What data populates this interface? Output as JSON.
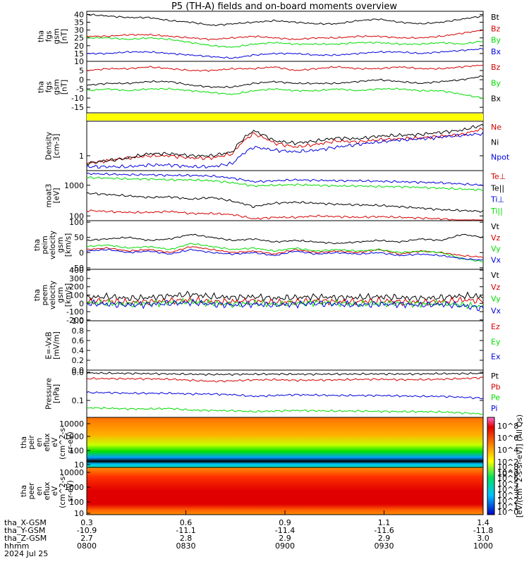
{
  "title": "P5 (TH-A) fields and on-board moments overview",
  "colors": {
    "black": "#000000",
    "red": "#d40000",
    "green": "#00dd00",
    "blue": "#0000dd",
    "yellow": "#ffff00"
  },
  "chart_data": {
    "type": "line",
    "panels": [
      {
        "ylabel": [
          "tha",
          "fgs",
          "gsm",
          "[nT]"
        ],
        "ylim": [
          10,
          42
        ],
        "ticks": [
          "40",
          "35",
          "30",
          "25",
          "20",
          "15",
          "10"
        ],
        "series": [
          {
            "name": "Bt",
            "color": "black",
            "values": [
              40,
              39,
              38,
              38,
              36,
              35,
              33,
              34,
              35,
              36,
              35,
              34,
              34,
              36,
              37,
              35,
              34,
              35,
              37,
              39
            ]
          },
          {
            "name": "Bz",
            "color": "red",
            "values": [
              26,
              26,
              27,
              27,
              26,
              25,
              24,
              25,
              26,
              25,
              24,
              25,
              25,
              26,
              26,
              25,
              25,
              26,
              28,
              30
            ]
          },
          {
            "name": "By",
            "color": "green",
            "values": [
              25,
              25,
              24,
              25,
              24,
              22,
              20,
              19,
              21,
              22,
              21,
              21,
              21,
              22,
              22,
              21,
              21,
              22,
              21,
              23
            ]
          },
          {
            "name": "Bx",
            "color": "blue",
            "values": [
              15,
              15,
              16,
              16,
              15,
              14,
              13,
              12,
              14,
              15,
              15,
              14,
              14,
              15,
              16,
              16,
              15,
              16,
              17,
              18
            ]
          }
        ]
      },
      {
        "ylabel": [
          "tha",
          "fgs",
          "gsm",
          "[nT]"
        ],
        "ylim": [
          -18,
          10
        ],
        "ticks": [
          "5",
          "0",
          "-5",
          "-10",
          "-15"
        ],
        "series": [
          {
            "name": "Bz",
            "color": "red",
            "values": [
              5,
              6,
              6,
              7,
              6,
              5,
              5,
              6,
              6,
              7,
              5,
              6,
              7,
              6,
              6,
              7,
              6,
              6,
              7,
              8
            ]
          },
          {
            "name": "By",
            "color": "green",
            "values": [
              -6,
              -5,
              -6,
              -5,
              -5,
              -6,
              -7,
              -8,
              -6,
              -5,
              -6,
              -6,
              -5,
              -6,
              -5,
              -5,
              -6,
              -6,
              -8,
              -10
            ]
          },
          {
            "name": "Bx",
            "color": "black",
            "values": [
              -3,
              -2,
              -2,
              -1,
              -1,
              -3,
              -4,
              -4,
              -2,
              -1,
              -2,
              -2,
              -2,
              -1,
              0,
              -1,
              -2,
              -1,
              0,
              2
            ]
          }
        ]
      },
      {
        "ylabel": [],
        "ylim": [
          0,
          1
        ],
        "ticks": [],
        "series": []
      },
      {
        "ylabel": [
          "Density",
          "[cm-3]"
        ],
        "log": true,
        "ylim": [
          0.5,
          5
        ],
        "ticks": [
          "1"
        ],
        "series": [
          {
            "name": "Ne",
            "color": "red",
            "values": [
              0.7,
              0.8,
              0.9,
              1.0,
              1.0,
              0.9,
              0.9,
              1.1,
              2.8,
              1.8,
              1.5,
              1.7,
              2.0,
              1.9,
              2.1,
              2.2,
              2.3,
              2.5,
              2.7,
              3.5
            ]
          },
          {
            "name": "Ni",
            "color": "black",
            "values": [
              0.7,
              0.8,
              0.9,
              1.1,
              1.1,
              1.0,
              1.0,
              1.2,
              3.2,
              2.0,
              1.8,
              2.0,
              2.3,
              2.2,
              2.5,
              2.6,
              2.7,
              3.0,
              3.3,
              4.2
            ]
          },
          {
            "name": "Npot",
            "color": "blue",
            "values": [
              0.6,
              0.6,
              0.6,
              0.65,
              0.65,
              0.6,
              0.6,
              0.7,
              1.5,
              1.3,
              1.2,
              1.3,
              1.5,
              1.7,
              1.9,
              2.1,
              2.2,
              2.4,
              2.6,
              2.8
            ]
          }
        ]
      },
      {
        "ylabel": [
          "moat3",
          "[eV]"
        ],
        "log": true,
        "ylim": [
          70,
          3000
        ],
        "ticks": [
          "1000",
          "100"
        ],
        "series": [
          {
            "name": "Te⊥",
            "color": "red",
            "values": [
              150,
              140,
              130,
              130,
              140,
              120,
              120,
              110,
              80,
              90,
              90,
              100,
              95,
              90,
              95,
              90,
              85,
              80,
              70,
              70
            ]
          },
          {
            "name": "Te||",
            "color": "black",
            "values": [
              550,
              500,
              450,
              400,
              420,
              350,
              400,
              300,
              200,
              260,
              280,
              260,
              240,
              230,
              220,
              200,
              180,
              160,
              150,
              140
            ]
          },
          {
            "name": "Ti⊥",
            "color": "blue",
            "values": [
              2400,
              2300,
              2200,
              2200,
              2100,
              2100,
              2000,
              1700,
              1300,
              1400,
              1500,
              1450,
              1400,
              1400,
              1350,
              1300,
              1250,
              1200,
              1100,
              1000
            ]
          },
          {
            "name": "Ti||",
            "color": "green",
            "values": [
              1800,
              1700,
              1600,
              1600,
              1500,
              1500,
              1400,
              1200,
              950,
              1000,
              1050,
              1000,
              950,
              950,
              900,
              900,
              850,
              800,
              750,
              700
            ]
          }
        ]
      },
      {
        "ylabel": [
          "tha",
          "peim",
          "velocity",
          "gsm",
          "[km/s]"
        ],
        "ylim": [
          -55,
          105
        ],
        "ticks": [
          "100",
          "50",
          "0",
          "-50"
        ],
        "series": [
          {
            "name": "Vt",
            "color": "black",
            "values": [
              40,
              45,
              50,
              40,
              45,
              60,
              50,
              40,
              45,
              35,
              40,
              35,
              30,
              35,
              40,
              35,
              45,
              40,
              60,
              50
            ]
          },
          {
            "name": "Vz",
            "color": "red",
            "values": [
              10,
              15,
              5,
              10,
              0,
              20,
              10,
              0,
              5,
              -5,
              10,
              0,
              5,
              0,
              10,
              -5,
              5,
              0,
              -10,
              -15
            ]
          },
          {
            "name": "Vy",
            "color": "green",
            "values": [
              20,
              25,
              15,
              20,
              10,
              30,
              20,
              10,
              15,
              5,
              15,
              5,
              10,
              5,
              10,
              0,
              5,
              0,
              -20,
              -30
            ]
          },
          {
            "name": "Vx",
            "color": "blue",
            "values": [
              5,
              10,
              0,
              5,
              -5,
              10,
              0,
              -5,
              0,
              -10,
              5,
              -5,
              0,
              -5,
              0,
              -10,
              -5,
              -10,
              -20,
              -25
            ]
          }
        ]
      },
      {
        "ylabel": [
          "tha",
          "peem",
          "velocity",
          "gsm",
          "[km/s]"
        ],
        "ylim": [
          -210,
          410
        ],
        "ticks": [
          "400",
          "300",
          "200",
          "100",
          "0",
          "-100",
          "-200"
        ],
        "series": [
          {
            "name": "Vt",
            "color": "black",
            "values": [
              70,
              80,
              60,
              70,
              90,
              110,
              80,
              70,
              80,
              60,
              70,
              80,
              70,
              70,
              80,
              70,
              60,
              70,
              90,
              80
            ]
          },
          {
            "name": "Vz",
            "color": "red",
            "values": [
              20,
              30,
              10,
              20,
              30,
              40,
              20,
              20,
              30,
              10,
              20,
              30,
              20,
              20,
              30,
              20,
              10,
              20,
              40,
              30
            ]
          },
          {
            "name": "Vy",
            "color": "green",
            "values": [
              10,
              0,
              -10,
              0,
              10,
              20,
              0,
              -10,
              0,
              -10,
              0,
              10,
              0,
              -10,
              0,
              0,
              -10,
              0,
              -20,
              -40
            ]
          },
          {
            "name": "Vx",
            "color": "blue",
            "values": [
              0,
              -10,
              -20,
              -10,
              0,
              10,
              -10,
              -20,
              -10,
              -20,
              -10,
              0,
              -10,
              -20,
              -10,
              -10,
              -20,
              -10,
              -30,
              -60
            ]
          }
        ]
      },
      {
        "ylabel": [
          "E=-VxB",
          "[mV/m]"
        ],
        "ylim": [
          0,
          1
        ],
        "ticks": [
          "1.0",
          "0.8",
          "0.6",
          "0.4",
          "0.2",
          "0.0"
        ],
        "series": [
          {
            "name": "Ez",
            "color": "red",
            "values": []
          },
          {
            "name": "Ey",
            "color": "green",
            "values": []
          },
          {
            "name": "Ex",
            "color": "blue",
            "values": []
          }
        ]
      },
      {
        "ylabel": [
          "Pressure",
          "[nPa]"
        ],
        "log": true,
        "ylim": [
          0.025,
          1.2
        ],
        "ticks": [
          "0.0",
          "0.1"
        ],
        "series": [
          {
            "name": "Pt",
            "color": "black",
            "values": [
              0.95,
              0.93,
              0.92,
              0.9,
              0.88,
              0.86,
              0.84,
              0.85,
              0.86,
              0.87,
              0.86,
              0.86,
              0.87,
              0.87,
              0.88,
              0.87,
              0.88,
              0.9,
              0.9,
              0.92
            ]
          },
          {
            "name": "Pb",
            "color": "red",
            "values": [
              0.6,
              0.6,
              0.59,
              0.59,
              0.57,
              0.52,
              0.48,
              0.5,
              0.54,
              0.55,
              0.52,
              0.53,
              0.54,
              0.56,
              0.57,
              0.55,
              0.55,
              0.57,
              0.6,
              0.65
            ]
          },
          {
            "name": "Pe",
            "color": "green",
            "values": [
              0.055,
              0.053,
              0.05,
              0.05,
              0.052,
              0.045,
              0.044,
              0.043,
              0.04,
              0.042,
              0.044,
              0.043,
              0.042,
              0.042,
              0.041,
              0.04,
              0.04,
              0.039,
              0.036,
              0.033
            ]
          },
          {
            "name": "Pi",
            "color": "blue",
            "values": [
              0.19,
              0.19,
              0.18,
              0.18,
              0.18,
              0.17,
              0.17,
              0.16,
              0.14,
              0.15,
              0.16,
              0.155,
              0.15,
              0.15,
              0.15,
              0.145,
              0.14,
              0.14,
              0.13,
              0.12
            ]
          }
        ]
      }
    ],
    "spectrograms": [
      {
        "ylabel": [
          "tha",
          "peir",
          "en",
          "eflux",
          "eV",
          "(cm^2-s-",
          "sr-eV)"
        ],
        "ticks": [
          "10000",
          "1000",
          "100",
          "10"
        ]
      },
      {
        "ylabel": [
          "tha",
          "peer",
          "en",
          "eflux",
          "eV",
          "(cm^2-s-",
          "sr-eV)"
        ],
        "ticks": [
          "10000",
          "1000",
          "100",
          "10"
        ]
      }
    ],
    "colorbar": {
      "label": "[eV/(cm^2-s-sr-eV)] (All Qs)",
      "upper_ticks": [
        "10^8",
        "10^6",
        "10^4",
        "10^2",
        "10^0"
      ],
      "lower_ticks": [
        "10^8",
        "10^7",
        "10^6",
        "10^5",
        "10^4",
        "10^3",
        "10^2",
        "10^1",
        "10^0"
      ]
    },
    "xaxis": {
      "row_labels": [
        "tha_X-GSM",
        "tha_Y-GSM",
        "tha_Z-GSM",
        "hhmm",
        "2024 Jul 25"
      ],
      "columns": [
        {
          "x": "0.3",
          "y": "-10.9",
          "z": "2.7",
          "hhmm": "0800"
        },
        {
          "x": "0.6",
          "y": "-11.1",
          "z": "2.8",
          "hhmm": "0830"
        },
        {
          "x": "0.9",
          "y": "-11.4",
          "z": "2.9",
          "hhmm": "0900"
        },
        {
          "x": "1.1",
          "y": "-11.6",
          "z": "2.9",
          "hhmm": "0930"
        },
        {
          "x": "1.4",
          "y": "-11.8",
          "z": "3.0",
          "hhmm": "1000"
        }
      ]
    }
  }
}
